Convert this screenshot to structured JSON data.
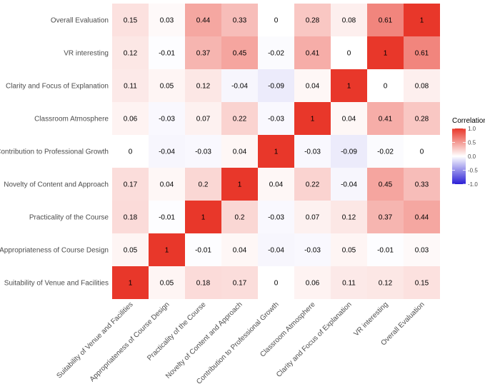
{
  "chart_data": {
    "type": "heatmap",
    "title": "",
    "xlabel": "",
    "ylabel": "",
    "variables": [
      "Suitability of Venue and Facilities",
      "Appropriateness of Course Design",
      "Practicality of the Course",
      "Novelty of Content and Approach",
      "Contribution to Professional Growth",
      "Classroom Atmosphere",
      "Clarity and Focus of Explanation",
      "VR interesting",
      "Overall Evaluation"
    ],
    "matrix": [
      [
        1,
        0.05,
        0.18,
        0.17,
        0,
        0.06,
        0.11,
        0.12,
        0.15
      ],
      [
        0.05,
        1,
        -0.01,
        0.04,
        -0.04,
        -0.03,
        0.05,
        -0.01,
        0.03
      ],
      [
        0.18,
        -0.01,
        1,
        0.2,
        -0.03,
        0.07,
        0.12,
        0.37,
        0.44
      ],
      [
        0.17,
        0.04,
        0.2,
        1,
        0.04,
        0.22,
        -0.04,
        0.45,
        0.33
      ],
      [
        0,
        -0.04,
        -0.03,
        0.04,
        1,
        -0.03,
        -0.09,
        -0.02,
        0
      ],
      [
        0.06,
        -0.03,
        0.07,
        0.22,
        -0.03,
        1,
        0.04,
        0.41,
        0.28
      ],
      [
        0.11,
        0.05,
        0.12,
        -0.04,
        -0.09,
        0.04,
        1,
        0,
        0.08
      ],
      [
        0.12,
        -0.01,
        0.37,
        0.45,
        -0.02,
        0.41,
        0,
        1,
        0.61
      ],
      [
        0.15,
        0.03,
        0.44,
        0.33,
        0,
        0.28,
        0.08,
        0.61,
        1
      ]
    ],
    "value_range": [
      -1,
      1
    ],
    "legend": {
      "title": "Correlation",
      "ticks": [
        "1.0",
        "0.5",
        "0.0",
        "-0.5",
        "-1.0"
      ],
      "tick_values": [
        1,
        0.5,
        0,
        -0.5,
        -1
      ],
      "position": "right"
    },
    "colors": {
      "high": "#e8372a",
      "mid": "#ffffff",
      "low": "#2b1fd6"
    }
  }
}
